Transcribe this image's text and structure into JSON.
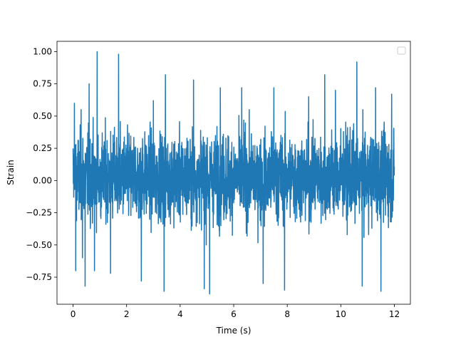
{
  "chart_data": {
    "type": "line",
    "title": "",
    "xlabel": "Time (s)",
    "ylabel": "Strain",
    "xlim": [
      -0.6,
      12.6
    ],
    "ylim": [
      -0.96,
      1.08
    ],
    "x_ticks": [
      0,
      2,
      4,
      6,
      8,
      10,
      12
    ],
    "x_tick_labels": [
      "0",
      "2",
      "4",
      "6",
      "8",
      "10",
      "12"
    ],
    "y_ticks": [
      -0.75,
      -0.5,
      -0.25,
      0.0,
      0.25,
      0.5,
      0.75,
      1.0
    ],
    "y_tick_labels": [
      "−0.75",
      "−0.50",
      "−0.25",
      "0.00",
      "0.25",
      "0.50",
      "0.75",
      "1.00"
    ],
    "grid": false,
    "legend": {
      "location": "upper right",
      "entries": []
    },
    "series": [
      {
        "color": "#1f77b4",
        "x_range": [
          0,
          12
        ],
        "typical_band": [
          -0.45,
          0.5
        ],
        "peaks": [
          {
            "x": 0.05,
            "y": 0.6
          },
          {
            "x": 0.1,
            "y": -0.7
          },
          {
            "x": 0.3,
            "y": 0.55
          },
          {
            "x": 0.35,
            "y": -0.6
          },
          {
            "x": 0.45,
            "y": -0.82
          },
          {
            "x": 0.6,
            "y": 0.75
          },
          {
            "x": 0.8,
            "y": -0.7
          },
          {
            "x": 0.9,
            "y": 1.0
          },
          {
            "x": 1.4,
            "y": -0.72
          },
          {
            "x": 1.7,
            "y": 0.98
          },
          {
            "x": 2.55,
            "y": -0.78
          },
          {
            "x": 3.0,
            "y": 0.62
          },
          {
            "x": 3.4,
            "y": -0.86
          },
          {
            "x": 3.45,
            "y": 0.82
          },
          {
            "x": 4.5,
            "y": 0.78
          },
          {
            "x": 4.9,
            "y": -0.84
          },
          {
            "x": 5.1,
            "y": -0.88
          },
          {
            "x": 5.5,
            "y": 0.72
          },
          {
            "x": 6.3,
            "y": 0.72
          },
          {
            "x": 7.1,
            "y": -0.8
          },
          {
            "x": 7.5,
            "y": 0.72
          },
          {
            "x": 7.9,
            "y": -0.85
          },
          {
            "x": 8.8,
            "y": 0.65
          },
          {
            "x": 9.4,
            "y": 0.82
          },
          {
            "x": 9.8,
            "y": 0.7
          },
          {
            "x": 10.6,
            "y": 0.92
          },
          {
            "x": 10.8,
            "y": -0.82
          },
          {
            "x": 11.3,
            "y": 0.72
          },
          {
            "x": 11.5,
            "y": -0.86
          },
          {
            "x": 11.9,
            "y": 0.67
          }
        ]
      }
    ]
  }
}
